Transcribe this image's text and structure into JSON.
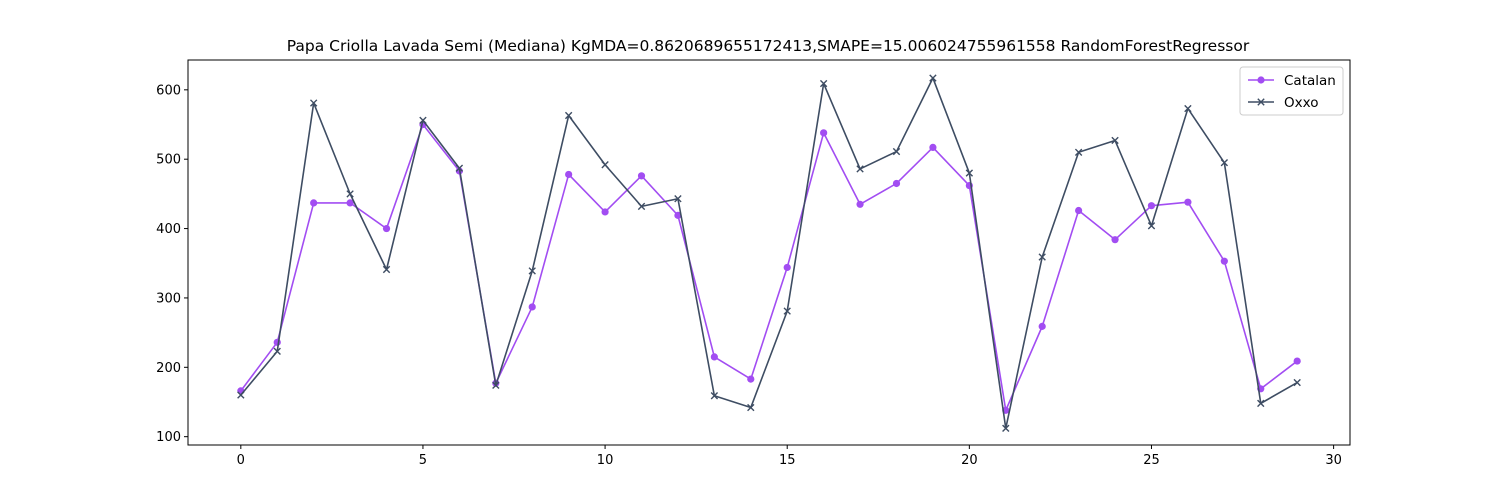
{
  "chart_data": {
    "type": "line",
    "title": "Papa Criolla Lavada Semi (Mediana) KgMDA=0.8620689655172413,SMAPE=15.006024755961558 RandomForestRegressor",
    "xlabel": "",
    "ylabel": "",
    "xlim": [
      -1.45,
      30.45
    ],
    "ylim": [
      88,
      643
    ],
    "xticks": [
      0,
      5,
      10,
      15,
      20,
      25,
      30
    ],
    "yticks": [
      100,
      200,
      300,
      400,
      500,
      600
    ],
    "grid": false,
    "legend_position": "top-right",
    "x": [
      0,
      1,
      2,
      3,
      4,
      5,
      6,
      7,
      8,
      9,
      10,
      11,
      12,
      13,
      14,
      15,
      16,
      17,
      18,
      19,
      20,
      21,
      22,
      23,
      24,
      25,
      26,
      27,
      28,
      29
    ],
    "series": [
      {
        "name": "Catalan",
        "color": "#a24df2",
        "marker": "circle",
        "values": [
          166,
          236,
          437,
          437,
          400,
          550,
          483,
          177,
          287,
          478,
          424,
          476,
          419,
          215,
          183,
          344,
          538,
          435,
          465,
          517,
          462,
          138,
          259,
          426,
          384,
          433,
          438,
          353,
          169,
          209
        ]
      },
      {
        "name": "Oxxo",
        "color": "#3e4d63",
        "marker": "x",
        "values": [
          160,
          223,
          581,
          450,
          341,
          556,
          487,
          174,
          339,
          563,
          492,
          432,
          443,
          159,
          142,
          281,
          609,
          486,
          511,
          617,
          480,
          112,
          359,
          510,
          527,
          404,
          573,
          495,
          148,
          178
        ]
      }
    ]
  }
}
